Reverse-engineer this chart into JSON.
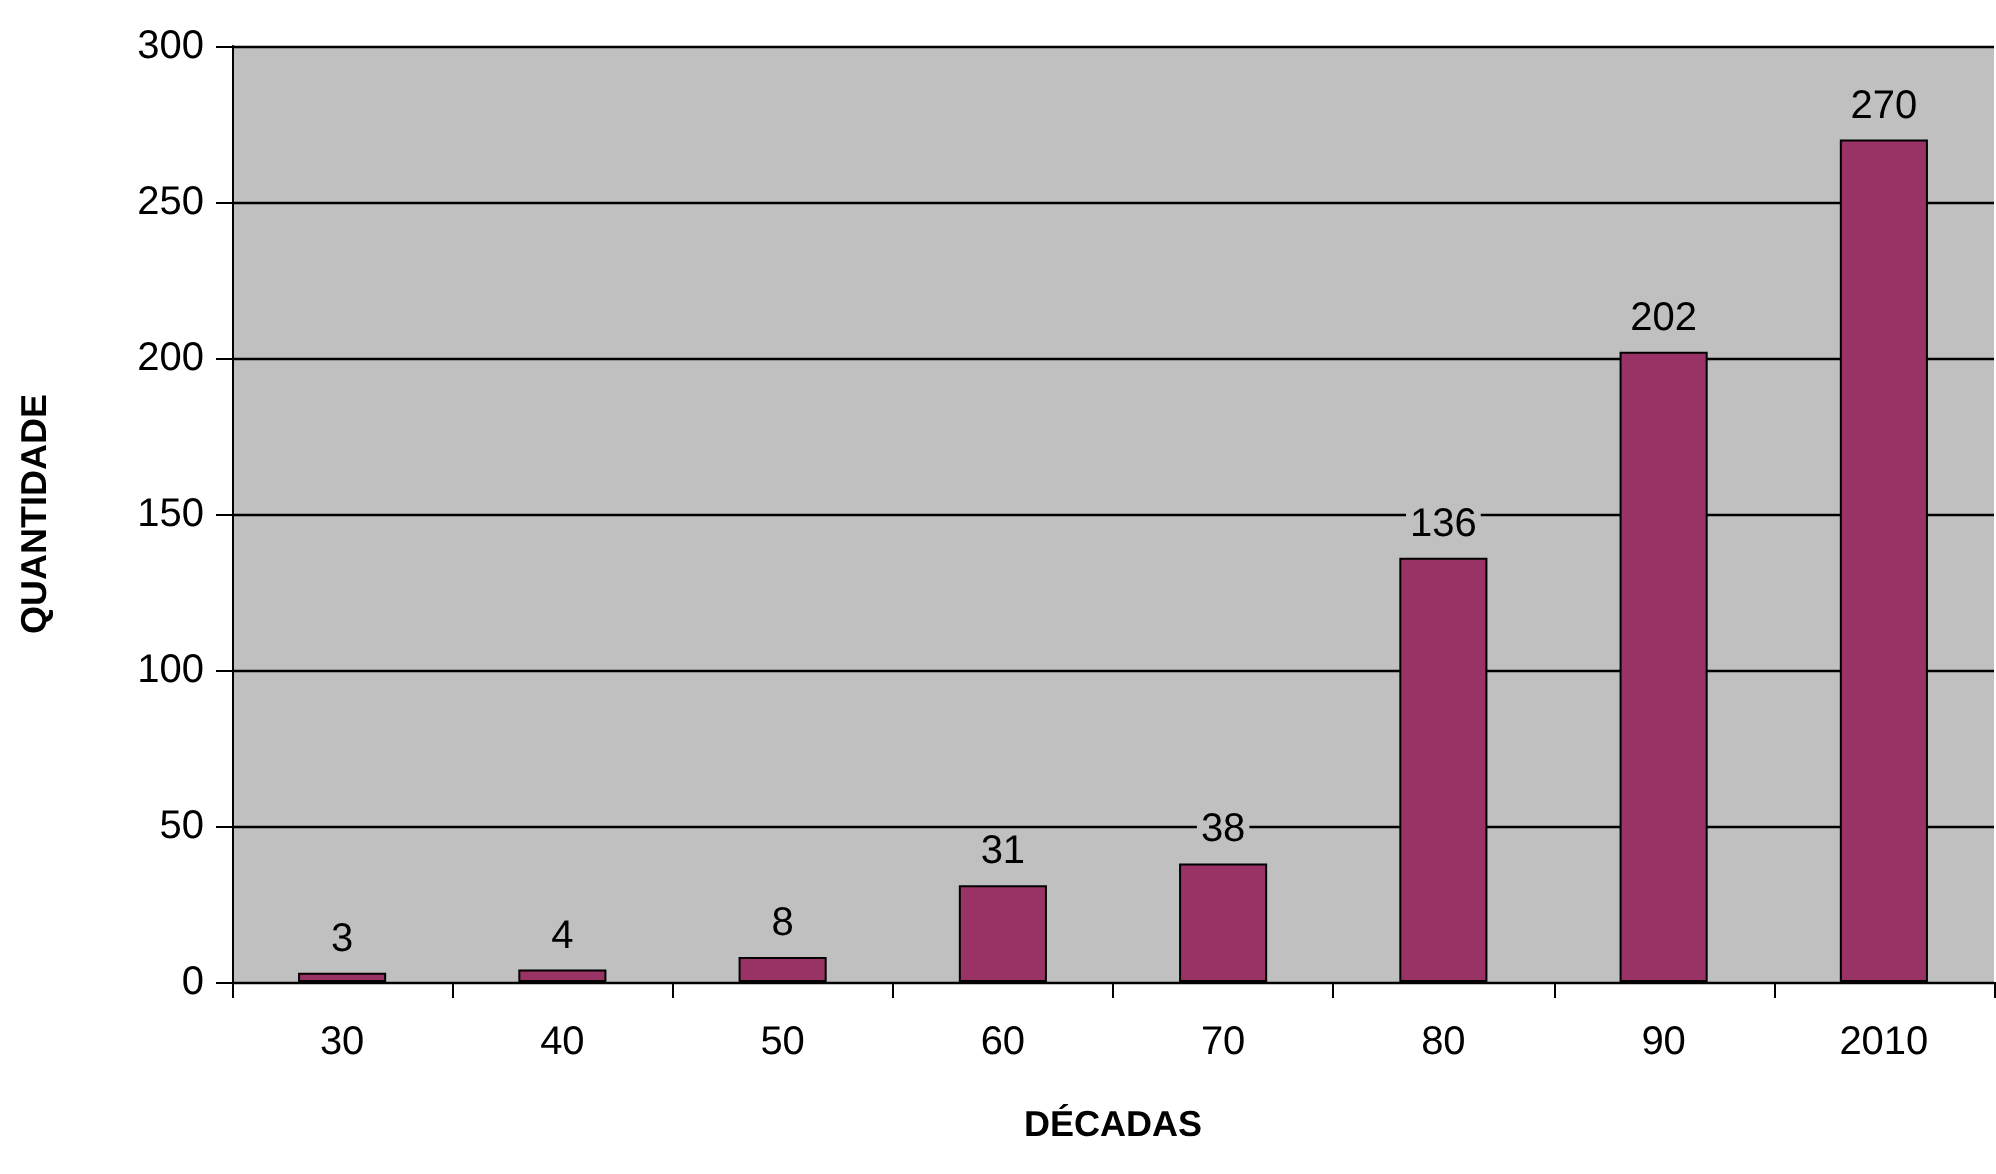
{
  "chart_data": {
    "type": "bar",
    "xlabel": "DÉCADAS",
    "ylabel": "QUANTIDADE",
    "categories": [
      "30",
      "40",
      "50",
      "60",
      "70",
      "80",
      "90",
      "2010"
    ],
    "values": [
      3,
      4,
      8,
      31,
      38,
      136,
      202,
      270
    ],
    "color": "#993366",
    "ylim": [
      0,
      300
    ],
    "yticks": [
      0,
      50,
      100,
      150,
      200,
      250,
      300
    ],
    "grid": "y",
    "data_labels": true
  }
}
